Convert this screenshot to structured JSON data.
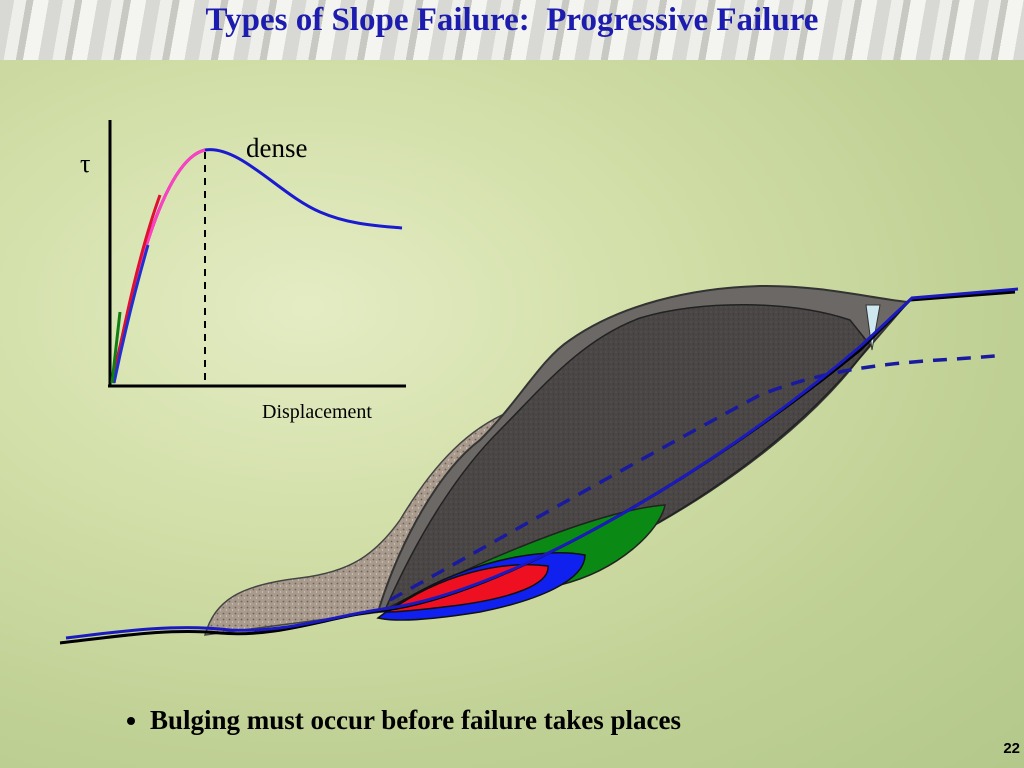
{
  "slide": {
    "title": "Types of Slope Failure:  Progressive Failure",
    "graph": {
      "y_label": "τ",
      "curve_label": "dense",
      "x_label": "Displacement"
    },
    "bullets": [
      "Bulging must occur before failure takes places"
    ],
    "page_number": "22"
  }
}
